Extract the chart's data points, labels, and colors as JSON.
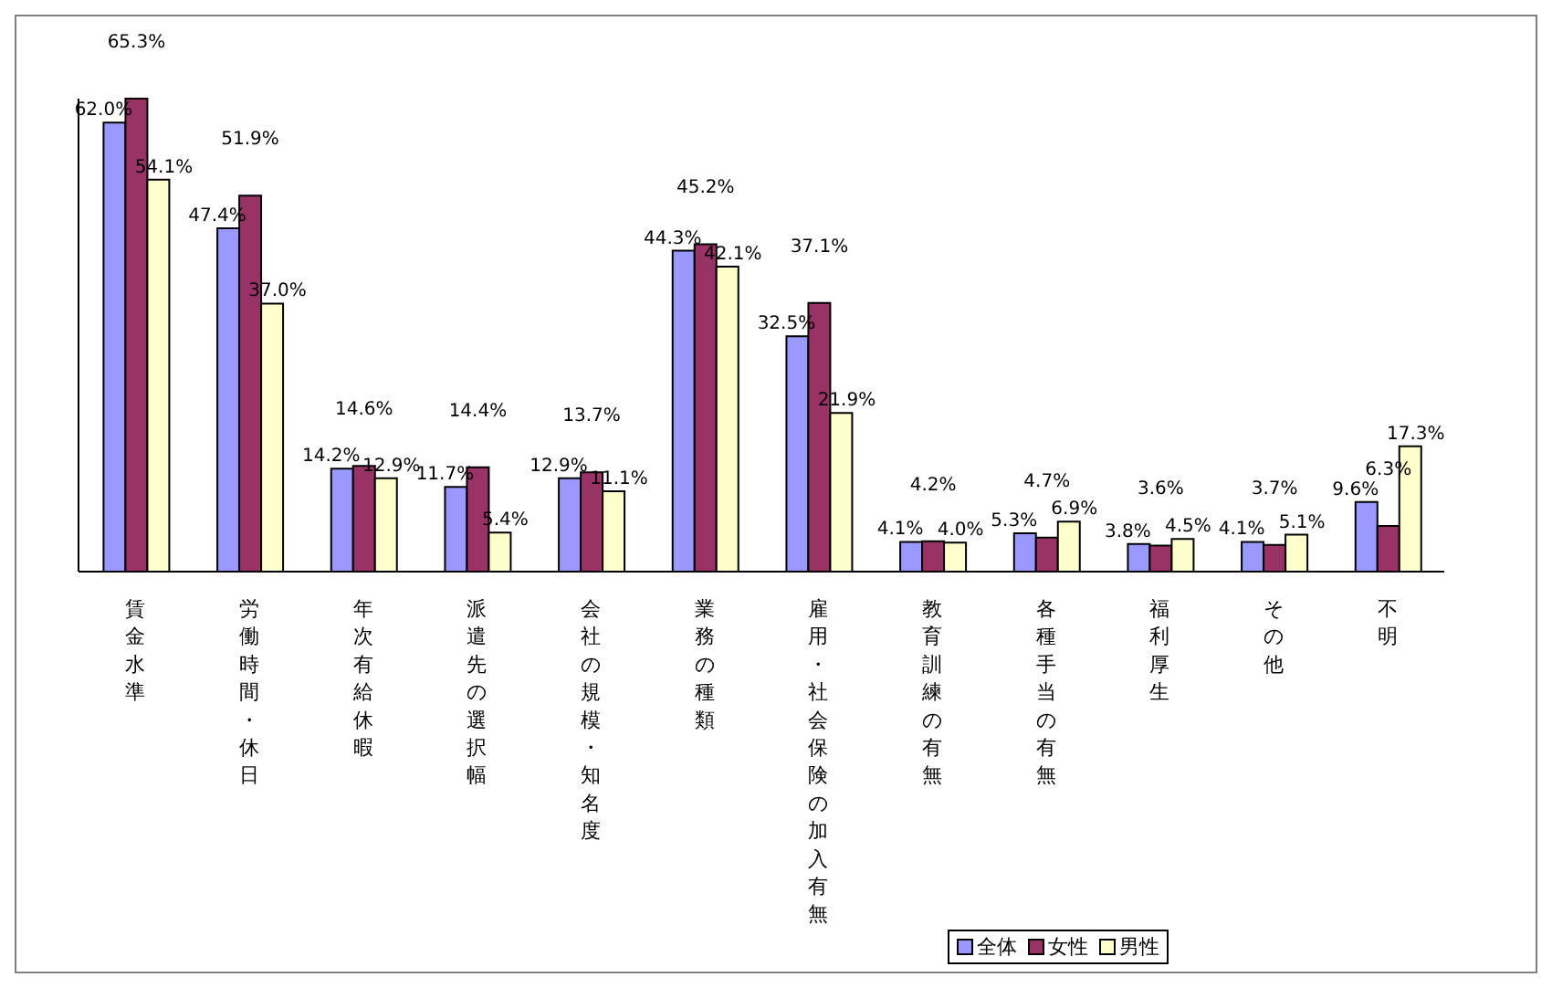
{
  "chart_data": {
    "type": "bar",
    "categories": [
      "賃金水準",
      "労働時間・休日",
      "年次有給休暇",
      "派遣先の選択幅",
      "会社の規模・知名度",
      "業務の種類",
      "雇用・社会保険の加入有無",
      "教育訓練の有無",
      "各種手当の有無",
      "福利厚生",
      "その他",
      "不明"
    ],
    "series": [
      {
        "name": "全体",
        "color": "#9999ff",
        "values": [
          62.0,
          47.4,
          14.2,
          11.7,
          12.9,
          44.3,
          32.5,
          4.1,
          5.3,
          3.8,
          4.1,
          9.6
        ],
        "value_labels": [
          "62.0%",
          "47.4%",
          "14.2%",
          "11.7%",
          "12.9%",
          "44.3%",
          "32.5%",
          "4.1%",
          "5.3%",
          "3.8%",
          "4.1%",
          "9.6%"
        ]
      },
      {
        "name": "女性",
        "color": "#993366",
        "values": [
          65.3,
          51.9,
          14.6,
          14.4,
          13.7,
          45.2,
          37.1,
          4.2,
          4.7,
          3.6,
          3.7,
          6.3
        ],
        "value_labels": [
          "65.3%",
          "51.9%",
          "14.6%",
          "14.4%",
          "13.7%",
          "45.2%",
          "37.1%",
          "4.2%",
          "4.7%",
          "3.6%",
          "3.7%",
          "6.3%"
        ]
      },
      {
        "name": "男性",
        "color": "#ffffcc",
        "values": [
          54.1,
          37.0,
          12.9,
          5.4,
          11.1,
          42.1,
          21.9,
          4.0,
          6.9,
          4.5,
          5.1,
          17.3
        ],
        "value_labels": [
          "54.1%",
          "37.0%",
          "12.9%",
          "5.4%",
          "11.1%",
          "42.1%",
          "21.9%",
          "4.0%",
          "6.9%",
          "4.5%",
          "5.1%",
          "17.3%"
        ]
      }
    ],
    "grid": false,
    "legend": "bottom"
  }
}
